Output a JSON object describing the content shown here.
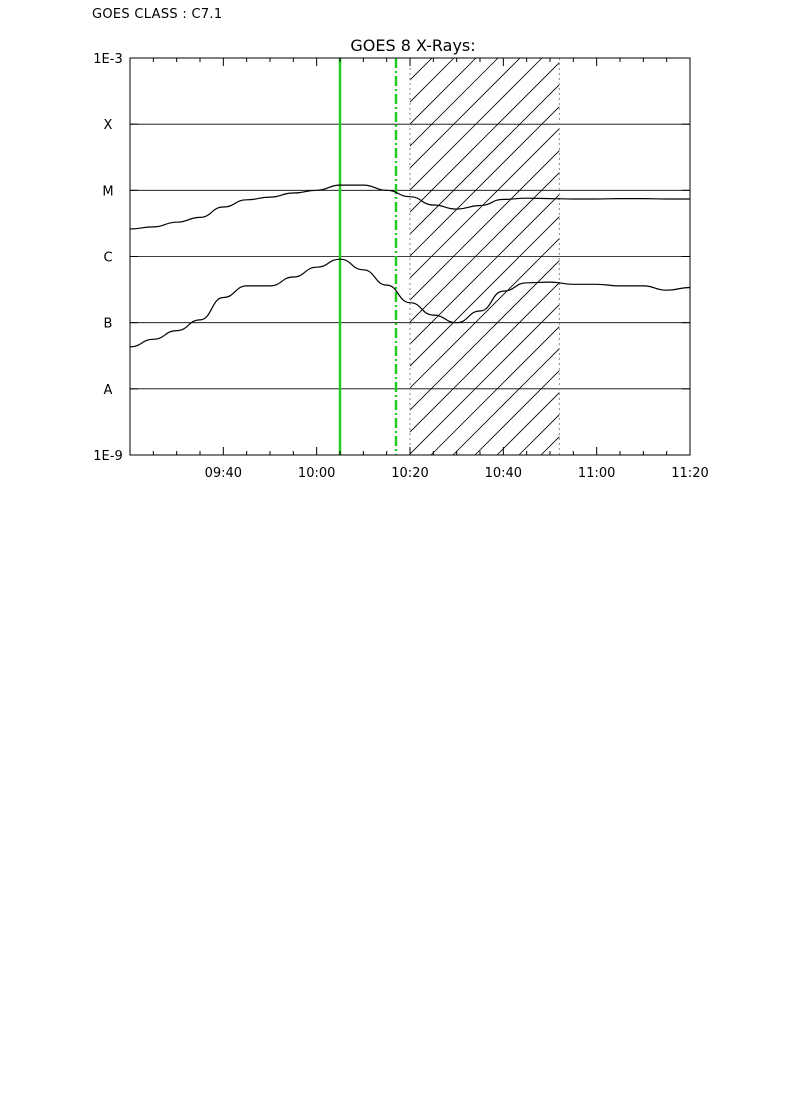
{
  "header": {
    "goes_class": "GOES CLASS : C7.1"
  },
  "chart_data": {
    "type": "line",
    "title": "GOES 8 X-Rays:",
    "xlabel": "",
    "ylabel": "",
    "x_unit": "time",
    "xlim": [
      "09:20",
      "11:20"
    ],
    "x_ticks": [
      "09:40",
      "10:00",
      "10:20",
      "10:40",
      "11:00",
      "11:20"
    ],
    "y_scale": "log",
    "ylim": [
      1e-09,
      0.001
    ],
    "y_ticks": [
      {
        "value": 0.001,
        "label": "1E-3"
      },
      {
        "value": 0.0001,
        "label": "X"
      },
      {
        "value": 1e-05,
        "label": "M"
      },
      {
        "value": 1e-06,
        "label": "C"
      },
      {
        "value": 1e-07,
        "label": "B"
      },
      {
        "value": 1e-08,
        "label": "A"
      },
      {
        "value": 1e-09,
        "label": "1E-9"
      }
    ],
    "grid": "horizontal",
    "series": [
      {
        "color": "#000000",
        "x": [
          "09:20",
          "09:25",
          "09:30",
          "09:35",
          "09:40",
          "09:45",
          "09:50",
          "09:55",
          "10:00",
          "10:05",
          "10:10",
          "10:15",
          "10:20",
          "10:25",
          "10:30",
          "10:35",
          "10:40",
          "10:45",
          "10:50",
          "10:55",
          "11:00",
          "11:05",
          "11:10",
          "11:15",
          "11:20"
        ],
        "y": [
          2.6e-06,
          2.8e-06,
          3.3e-06,
          3.9e-06,
          5.6e-06,
          7.2e-06,
          7.9e-06,
          9.1e-06,
          1e-05,
          1.2e-05,
          1.2e-05,
          1e-05,
          8e-06,
          6e-06,
          5.2e-06,
          5.9e-06,
          7.3e-06,
          7.6e-06,
          7.5e-06,
          7.4e-06,
          7.4e-06,
          7.5e-06,
          7.5e-06,
          7.4e-06,
          7.4e-06
        ]
      },
      {
        "color": "#000000",
        "x": [
          "09:20",
          "09:25",
          "09:30",
          "09:35",
          "09:40",
          "09:45",
          "09:50",
          "09:55",
          "10:00",
          "10:05",
          "10:10",
          "10:15",
          "10:20",
          "10:25",
          "10:30",
          "10:35",
          "10:40",
          "10:45",
          "10:50",
          "10:55",
          "11:00",
          "11:05",
          "11:10",
          "11:15",
          "11:20"
        ],
        "y": [
          4.3e-08,
          5.6e-08,
          7.6e-08,
          1.1e-07,
          2.4e-07,
          3.6e-07,
          3.6e-07,
          4.9e-07,
          6.9e-07,
          9.1e-07,
          6.3e-07,
          3.7e-07,
          2e-07,
          1.3e-07,
          1e-07,
          1.5e-07,
          3e-07,
          4e-07,
          4.1e-07,
          3.8e-07,
          3.8e-07,
          3.6e-07,
          3.6e-07,
          3.1e-07,
          3.4e-07
        ]
      }
    ],
    "markers": [
      {
        "time": "10:05",
        "color": "#22cc22",
        "style": "solid"
      },
      {
        "time": "10:17",
        "color": "#22cc22",
        "style": "dashed"
      },
      {
        "time": "10:20",
        "color": "#888888",
        "style": "dotted"
      },
      {
        "time": "10:52",
        "color": "#888888",
        "style": "dotted"
      }
    ],
    "hatched_interval": [
      "10:20",
      "10:52"
    ]
  }
}
